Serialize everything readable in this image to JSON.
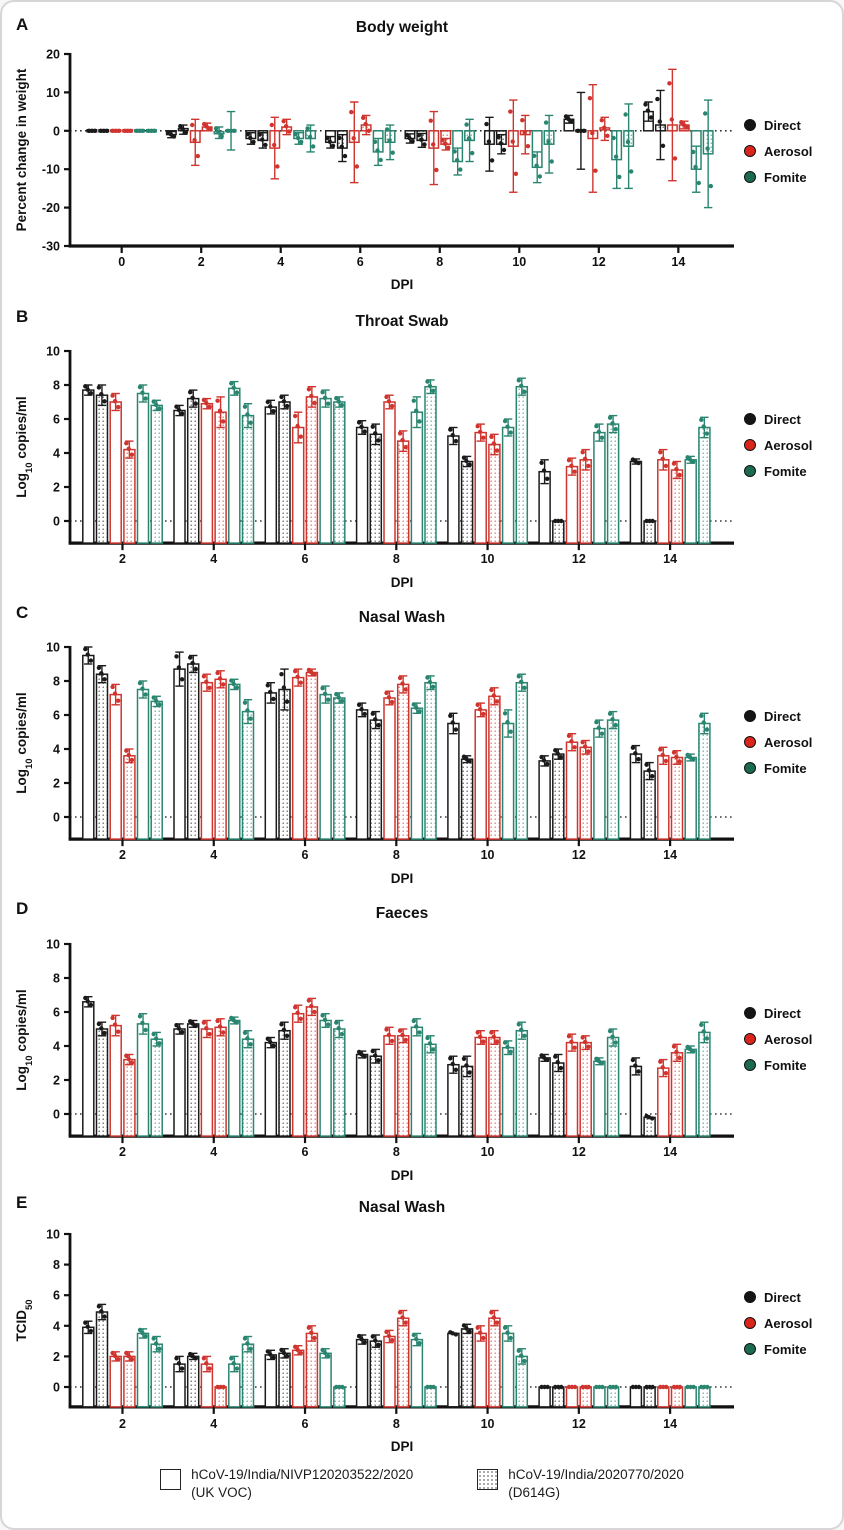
{
  "figure": {
    "series_styles": [
      {
        "key": "direct-ukvoc",
        "group": "Direct",
        "variant": "UK VOC",
        "color": "#1a1a1a",
        "fill": "open"
      },
      {
        "key": "direct-d614g",
        "group": "Direct",
        "variant": "D614G",
        "color": "#1a1a1a",
        "fill": "dotted"
      },
      {
        "key": "aerosol-ukvoc",
        "group": "Aerosol",
        "variant": "UK VOC",
        "color": "#cf352e",
        "fill": "open"
      },
      {
        "key": "aerosol-d614g",
        "group": "Aerosol",
        "variant": "D614G",
        "color": "#cf352e",
        "fill": "dotted"
      },
      {
        "key": "fomite-ukvoc",
        "group": "Fomite",
        "variant": "UK VOC",
        "color": "#2a8570",
        "fill": "open"
      },
      {
        "key": "fomite-d614g",
        "group": "Fomite",
        "variant": "D614G",
        "color": "#2a8570",
        "fill": "dotted"
      }
    ],
    "group_legend": [
      {
        "label": "Direct",
        "color": "#151515"
      },
      {
        "label": "Aerosol",
        "color": "#da251d"
      },
      {
        "label": "Fomite",
        "color": "#1c6a50"
      }
    ],
    "variant_legend": [
      {
        "line1": "hCoV-19/India/NIVP120203522/2020",
        "line2": "(UK VOC)",
        "fill": "open"
      },
      {
        "line1": "hCoV-19/India/2020770/2020",
        "line2": "(D614G)",
        "fill": "dotted"
      }
    ]
  },
  "chart_data": [
    {
      "panel_label": "A",
      "type": "bar",
      "title": "Body weight",
      "ylabel": "Percent change in weight",
      "xlabel": "DPI",
      "ylim": [
        -30,
        20
      ],
      "yticks": [
        20,
        10,
        0,
        -10,
        -20,
        -30
      ],
      "categories": [
        0,
        2,
        4,
        6,
        8,
        10,
        12,
        14
      ],
      "series": [
        {
          "name": "Direct (UK VOC)",
          "values": [
            0,
            -1,
            -2,
            -3,
            -2,
            -3.5,
            3,
            5
          ],
          "errors": [
            0.3,
            0.8,
            1.5,
            1.5,
            1.2,
            7,
            1,
            2.5
          ]
        },
        {
          "name": "Direct (D614G)",
          "values": [
            0,
            0.3,
            -2.5,
            -4.5,
            -2.5,
            -3.5,
            0,
            1.5
          ],
          "errors": [
            0.3,
            1.2,
            2,
            3.5,
            1.8,
            2.5,
            10,
            9
          ]
        },
        {
          "name": "Aerosol (UK VOC)",
          "values": [
            0,
            -3,
            -4.5,
            -3,
            -4.5,
            -4,
            -2,
            1.5
          ],
          "errors": [
            0.3,
            6,
            8,
            10.5,
            9.5,
            12,
            14,
            14.5
          ]
        },
        {
          "name": "Aerosol (D614G)",
          "values": [
            0,
            1,
            1,
            1.5,
            -3.5,
            -1,
            0.5,
            1.5
          ],
          "errors": [
            0.3,
            1,
            2,
            2.5,
            1.5,
            5,
            3,
            1
          ]
        },
        {
          "name": "Fomite (UK VOC)",
          "values": [
            0,
            -0.5,
            -2,
            -5.5,
            -8,
            -9.5,
            -7.5,
            -10
          ],
          "errors": [
            0.3,
            1.5,
            1.5,
            3.5,
            3.5,
            4,
            7.5,
            6
          ]
        },
        {
          "name": "Fomite (D614G)",
          "values": [
            0,
            0,
            -2,
            -3,
            -2.5,
            -3.5,
            -4,
            -6
          ],
          "errors": [
            0.3,
            5,
            3.5,
            4.5,
            5.5,
            7.5,
            11,
            14
          ]
        }
      ]
    },
    {
      "panel_label": "B",
      "type": "bar",
      "title": "Throat Swab",
      "ylabel": "Log10 copies/ml",
      "ylabel_pre": "Log",
      "ylabel_sub": "10",
      "ylabel_post": " copies/ml",
      "xlabel": "DPI",
      "ylim": [
        0,
        10
      ],
      "yticks": [
        10,
        8,
        6,
        4,
        2,
        0
      ],
      "categories": [
        2,
        4,
        6,
        8,
        10,
        12,
        14
      ],
      "series": [
        {
          "name": "Direct (UK VOC)",
          "values": [
            7.7,
            6.5,
            6.7,
            5.5,
            5.0,
            2.9,
            3.5
          ],
          "errors": [
            0.3,
            0.3,
            0.4,
            0.4,
            0.5,
            0.7,
            0.15
          ]
        },
        {
          "name": "Direct (D614G)",
          "values": [
            7.4,
            7.2,
            7.0,
            5.1,
            3.5,
            0,
            0
          ],
          "errors": [
            0.6,
            0.5,
            0.4,
            0.6,
            0.3,
            0.05,
            0.05
          ]
        },
        {
          "name": "Aerosol (UK VOC)",
          "values": [
            7.0,
            6.9,
            5.5,
            7.0,
            5.2,
            3.2,
            3.6
          ],
          "errors": [
            0.5,
            0.3,
            0.9,
            0.4,
            0.5,
            0.5,
            0.6
          ]
        },
        {
          "name": "Aerosol (D614G)",
          "values": [
            4.2,
            6.4,
            7.3,
            4.7,
            4.5,
            3.6,
            3.0
          ],
          "errors": [
            0.5,
            0.9,
            0.6,
            0.6,
            0.6,
            0.6,
            0.5
          ]
        },
        {
          "name": "Fomite (UK VOC)",
          "values": [
            7.5,
            7.8,
            7.2,
            6.4,
            5.5,
            5.2,
            3.6
          ],
          "errors": [
            0.5,
            0.4,
            0.5,
            0.9,
            0.5,
            0.5,
            0.2
          ]
        },
        {
          "name": "Fomite (D614G)",
          "values": [
            6.8,
            6.2,
            7.0,
            7.9,
            7.9,
            5.7,
            5.5
          ],
          "errors": [
            0.3,
            0.7,
            0.3,
            0.4,
            0.5,
            0.5,
            0.6
          ]
        }
      ]
    },
    {
      "panel_label": "C",
      "type": "bar",
      "title": "Nasal Wash",
      "ylabel": "Log10 copies/ml",
      "ylabel_pre": "Log",
      "ylabel_sub": "10",
      "ylabel_post": " copies/ml",
      "xlabel": "DPI",
      "ylim": [
        0,
        10
      ],
      "yticks": [
        10,
        8,
        6,
        4,
        2,
        0
      ],
      "categories": [
        2,
        4,
        6,
        8,
        10,
        12,
        14
      ],
      "series": [
        {
          "name": "Direct (UK VOC)",
          "values": [
            9.5,
            8.7,
            7.3,
            6.3,
            5.5,
            3.3,
            3.7
          ],
          "errors": [
            0.5,
            1.0,
            0.6,
            0.4,
            0.6,
            0.3,
            0.5
          ]
        },
        {
          "name": "Direct (D614G)",
          "values": [
            8.4,
            9.0,
            7.5,
            5.7,
            3.4,
            3.7,
            2.7
          ],
          "errors": [
            0.5,
            0.5,
            1.2,
            0.5,
            0.2,
            0.3,
            0.5
          ]
        },
        {
          "name": "Aerosol (UK VOC)",
          "values": [
            7.2,
            7.9,
            8.2,
            7.0,
            6.3,
            4.4,
            3.6
          ],
          "errors": [
            0.6,
            0.5,
            0.5,
            0.4,
            0.4,
            0.5,
            0.5
          ]
        },
        {
          "name": "Aerosol (D614G)",
          "values": [
            3.6,
            8.1,
            8.5,
            7.8,
            7.1,
            4.1,
            3.5
          ],
          "errors": [
            0.4,
            0.5,
            0.2,
            0.5,
            0.5,
            0.4,
            0.4
          ]
        },
        {
          "name": "Fomite (UK VOC)",
          "values": [
            7.5,
            7.8,
            7.2,
            6.4,
            5.5,
            5.2,
            3.5
          ],
          "errors": [
            0.5,
            0.3,
            0.5,
            0.3,
            0.8,
            0.5,
            0.2
          ]
        },
        {
          "name": "Fomite (D614G)",
          "values": [
            6.8,
            6.2,
            7.0,
            7.9,
            7.9,
            5.7,
            5.5
          ],
          "errors": [
            0.3,
            0.7,
            0.3,
            0.4,
            0.5,
            0.5,
            0.6
          ]
        }
      ]
    },
    {
      "panel_label": "D",
      "type": "bar",
      "title": "Faeces",
      "ylabel": "Log10 copies/ml",
      "ylabel_pre": "Log",
      "ylabel_sub": "10",
      "ylabel_post": " copies/ml",
      "xlabel": "DPI",
      "ylim": [
        0,
        10
      ],
      "yticks": [
        10,
        8,
        6,
        4,
        2,
        0
      ],
      "categories": [
        2,
        4,
        6,
        8,
        10,
        12,
        14
      ],
      "series": [
        {
          "name": "Direct (UK VOC)",
          "values": [
            6.6,
            5.0,
            4.2,
            3.5,
            2.9,
            3.3,
            2.8
          ],
          "errors": [
            0.3,
            0.3,
            0.3,
            0.2,
            0.5,
            0.2,
            0.5
          ]
        },
        {
          "name": "Direct (D614G)",
          "values": [
            5.0,
            5.3,
            4.9,
            3.4,
            2.8,
            3.0,
            -0.2
          ],
          "errors": [
            0.4,
            0.2,
            0.5,
            0.4,
            0.6,
            0.5,
            0.1
          ]
        },
        {
          "name": "Aerosol (UK VOC)",
          "values": [
            5.2,
            5.0,
            5.9,
            4.6,
            4.5,
            4.2,
            2.7
          ],
          "errors": [
            0.6,
            0.5,
            0.5,
            0.5,
            0.4,
            0.5,
            0.5
          ]
        },
        {
          "name": "Aerosol (D614G)",
          "values": [
            3.2,
            5.1,
            6.3,
            4.6,
            4.5,
            4.2,
            3.6
          ],
          "errors": [
            0.3,
            0.5,
            0.5,
            0.4,
            0.4,
            0.4,
            0.5
          ]
        },
        {
          "name": "Fomite (UK VOC)",
          "values": [
            5.3,
            5.5,
            5.5,
            5.1,
            3.9,
            3.1,
            3.8
          ],
          "errors": [
            0.6,
            0.2,
            0.4,
            0.5,
            0.4,
            0.2,
            0.2
          ]
        },
        {
          "name": "Fomite (D614G)",
          "values": [
            4.4,
            4.4,
            5.0,
            4.1,
            4.9,
            4.5,
            4.8
          ],
          "errors": [
            0.4,
            0.5,
            0.5,
            0.5,
            0.5,
            0.5,
            0.6
          ]
        }
      ]
    },
    {
      "panel_label": "E",
      "type": "bar",
      "title": "Nasal Wash",
      "ylabel": "TCID50",
      "ylabel_pre": "TCID",
      "ylabel_sub": "50",
      "ylabel_post": "",
      "xlabel": "DPI",
      "ylim": [
        0,
        10
      ],
      "yticks": [
        10,
        8,
        6,
        4,
        2,
        0
      ],
      "categories": [
        2,
        4,
        6,
        8,
        10,
        12,
        14
      ],
      "series": [
        {
          "name": "Direct (UK VOC)",
          "values": [
            3.9,
            1.5,
            2.1,
            3.1,
            3.5,
            0,
            0
          ],
          "errors": [
            0.4,
            0.5,
            0.3,
            0.3,
            0.1,
            0.05,
            0.05
          ]
        },
        {
          "name": "Direct (D614G)",
          "values": [
            4.9,
            2.0,
            2.2,
            3.0,
            3.8,
            0,
            0
          ],
          "errors": [
            0.5,
            0.2,
            0.3,
            0.4,
            0.3,
            0.05,
            0.05
          ]
        },
        {
          "name": "Aerosol (UK VOC)",
          "values": [
            2.0,
            1.5,
            2.4,
            3.3,
            3.5,
            0,
            0
          ],
          "errors": [
            0.3,
            0.5,
            0.3,
            0.4,
            0.5,
            0.05,
            0.05
          ]
        },
        {
          "name": "Aerosol (D614G)",
          "values": [
            2.0,
            0,
            3.5,
            4.5,
            4.5,
            0,
            0
          ],
          "errors": [
            0.3,
            0.05,
            0.5,
            0.5,
            0.5,
            0.05,
            0.05
          ]
        },
        {
          "name": "Fomite (UK VOC)",
          "values": [
            3.5,
            1.5,
            2.2,
            3.1,
            3.5,
            0,
            0
          ],
          "errors": [
            0.3,
            0.5,
            0.3,
            0.4,
            0.5,
            0.05,
            0.05
          ]
        },
        {
          "name": "Fomite (D614G)",
          "values": [
            2.8,
            2.8,
            0,
            0,
            2.0,
            0,
            0
          ],
          "errors": [
            0.5,
            0.5,
            0.05,
            0.05,
            0.5,
            0.05,
            0.05
          ]
        }
      ]
    }
  ]
}
